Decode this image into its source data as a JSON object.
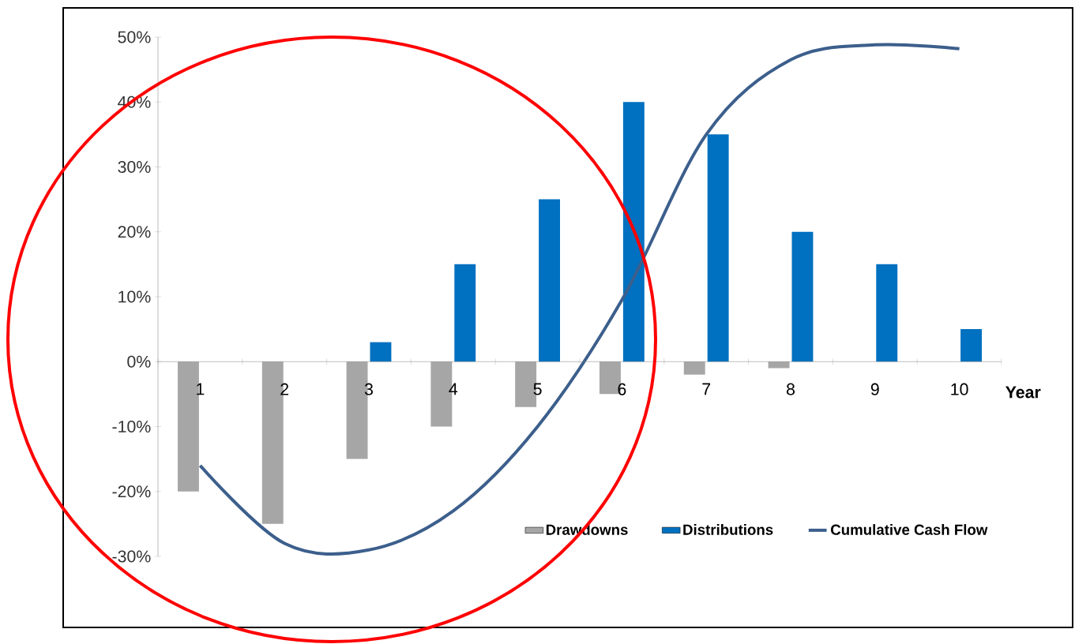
{
  "chart_data": {
    "type": "bar",
    "xlabel": "Year",
    "categories": [
      "1",
      "2",
      "3",
      "4",
      "5",
      "6",
      "7",
      "8",
      "9",
      "10"
    ],
    "series": [
      {
        "name": "Drawdowns",
        "color": "#a6a6a6",
        "values": [
          -20,
          -25,
          -15,
          -10,
          -7,
          -5,
          -2,
          -1,
          0,
          0
        ]
      },
      {
        "name": "Distributions",
        "color": "#0070c0",
        "values": [
          0,
          0,
          3,
          15,
          25,
          40,
          35,
          20,
          15,
          5
        ]
      },
      {
        "name": "Cumulative Cash Flow",
        "type": "line",
        "color": "#3c5f8c",
        "values": [
          -16,
          -28,
          -29,
          -23,
          -10,
          9.5,
          35,
          46.5,
          48.8,
          48.2
        ]
      }
    ],
    "ylim": [
      -30,
      50
    ],
    "yticks": [
      {
        "value": -30,
        "label": "-30%"
      },
      {
        "value": -20,
        "label": "-20%"
      },
      {
        "value": -10,
        "label": "-10%"
      },
      {
        "value": 0,
        "label": "0%"
      },
      {
        "value": 10,
        "label": "10%"
      },
      {
        "value": 20,
        "label": "20%"
      },
      {
        "value": 30,
        "label": "30%"
      },
      {
        "value": 40,
        "label": "40%"
      },
      {
        "value": 50,
        "label": "50%"
      }
    ],
    "legend": "bottom",
    "marker": "none"
  }
}
